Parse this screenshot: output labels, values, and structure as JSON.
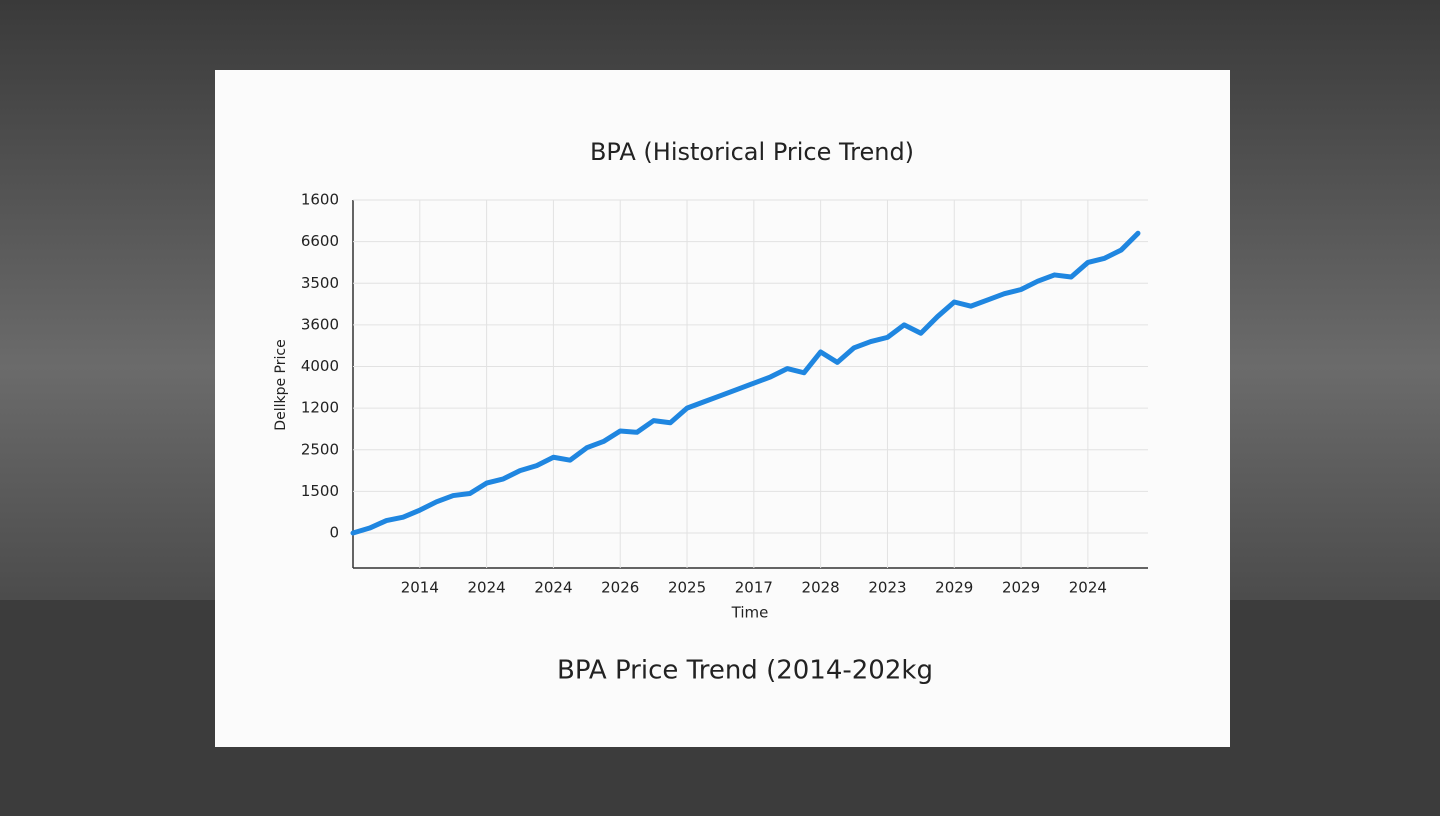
{
  "chart_data": {
    "type": "line",
    "title": "BPA (Historical Price Trend)",
    "subtitle": "BPA Price Trend (2014-202kg",
    "y_label": "Dellkpe Price",
    "x_label": "Time",
    "grid": true,
    "xlim": [
      0,
      11.9
    ],
    "xticks": [
      {
        "value": 1,
        "label": "2014"
      },
      {
        "value": 2,
        "label": "2024"
      },
      {
        "value": 3,
        "label": "2024"
      },
      {
        "value": 4,
        "label": "2026"
      },
      {
        "value": 5,
        "label": "2025"
      },
      {
        "value": 6,
        "label": "2017"
      },
      {
        "value": 7,
        "label": "2028"
      },
      {
        "value": 8,
        "label": "2023"
      },
      {
        "value": 9,
        "label": "2029"
      },
      {
        "value": 10,
        "label": "2029"
      },
      {
        "value": 11,
        "label": "2024"
      }
    ],
    "ylim": [
      -0.84,
      8
    ],
    "yticks": [
      {
        "value": 0,
        "label": "0"
      },
      {
        "value": 1,
        "label": "1500"
      },
      {
        "value": 2,
        "label": "2500"
      },
      {
        "value": 3,
        "label": "1200"
      },
      {
        "value": 4,
        "label": "4000"
      },
      {
        "value": 5,
        "label": "3600"
      },
      {
        "value": 6,
        "label": "3500"
      },
      {
        "value": 7,
        "label": "6600"
      },
      {
        "value": 8,
        "label": "1600"
      }
    ],
    "x": [
      0,
      0.25,
      0.5,
      0.75,
      1,
      1.25,
      1.5,
      1.75,
      2,
      2.25,
      2.5,
      2.75,
      3,
      3.25,
      3.5,
      3.75,
      4,
      4.25,
      4.5,
      4.75,
      5,
      5.25,
      5.5,
      5.75,
      6,
      6.25,
      6.5,
      6.75,
      7,
      7.25,
      7.5,
      7.75,
      8,
      8.25,
      8.5,
      8.75,
      9,
      9.25,
      9.5,
      9.75,
      10,
      10.25,
      10.5,
      10.75,
      11,
      11.25,
      11.5,
      11.75
    ],
    "series": [
      {
        "name": "BPA",
        "color": "#1f86e0",
        "values": [
          0.0,
          0.12,
          0.3,
          0.38,
          0.55,
          0.75,
          0.9,
          0.95,
          1.2,
          1.3,
          1.5,
          1.62,
          1.82,
          1.75,
          2.05,
          2.2,
          2.45,
          2.42,
          2.7,
          2.65,
          3.0,
          3.15,
          3.3,
          3.45,
          3.6,
          3.75,
          3.95,
          3.85,
          4.35,
          4.1,
          4.45,
          4.6,
          4.7,
          5.0,
          4.8,
          5.2,
          5.55,
          5.45,
          5.6,
          5.75,
          5.85,
          6.05,
          6.2,
          6.15,
          6.5,
          6.6,
          6.8,
          7.2
        ]
      }
    ]
  }
}
